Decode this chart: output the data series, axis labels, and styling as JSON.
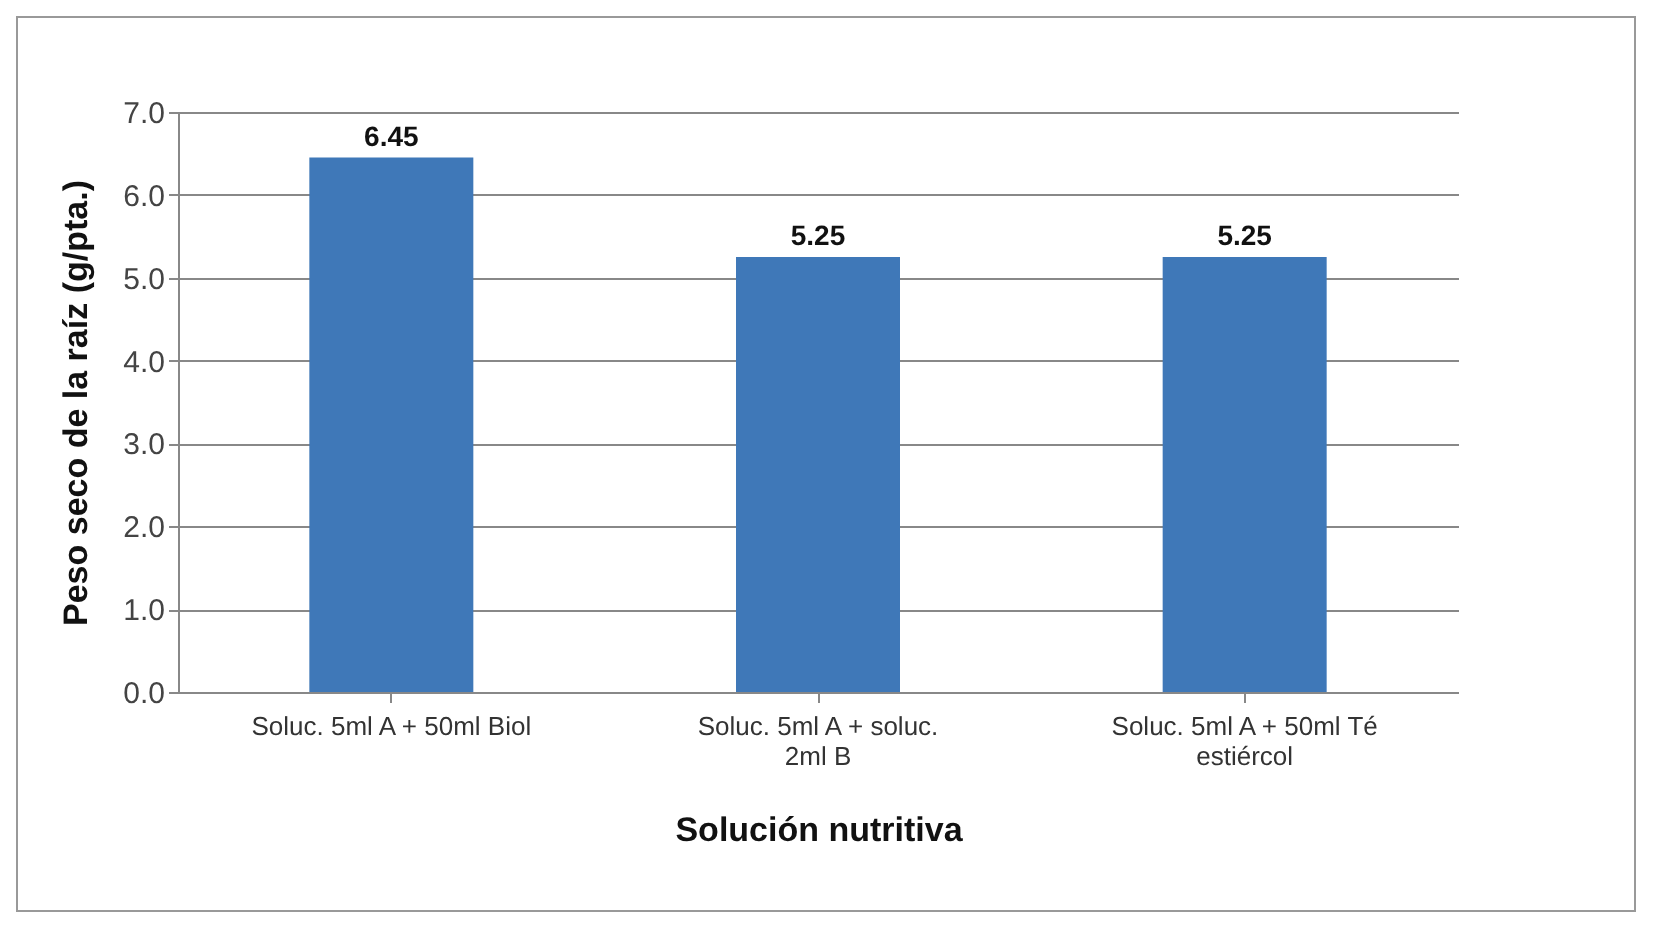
{
  "chart_data": {
    "type": "bar",
    "xlabel": "Solución nutritiva",
    "ylabel": "Peso seco de la raíz (g/pta.)",
    "categories": [
      "Soluc. 5ml A + 50ml Biol",
      "Soluc. 5ml A + soluc. 2ml B",
      "Soluc. 5ml A + 50ml Té estiércol"
    ],
    "values": [
      6.45,
      5.25,
      5.25
    ],
    "color": "#3f78b8",
    "ylim": [
      0,
      7
    ],
    "yticks": [
      {
        "value": 0,
        "label": "0.0"
      },
      {
        "value": 1,
        "label": "1.0"
      },
      {
        "value": 2,
        "label": "2.0"
      },
      {
        "value": 3,
        "label": "3.0"
      },
      {
        "value": 4,
        "label": "4.0"
      },
      {
        "value": 5,
        "label": "5.0"
      },
      {
        "value": 6,
        "label": "6.0"
      },
      {
        "value": 7,
        "label": "7.0"
      }
    ],
    "grid": "y",
    "data_labels": true
  }
}
